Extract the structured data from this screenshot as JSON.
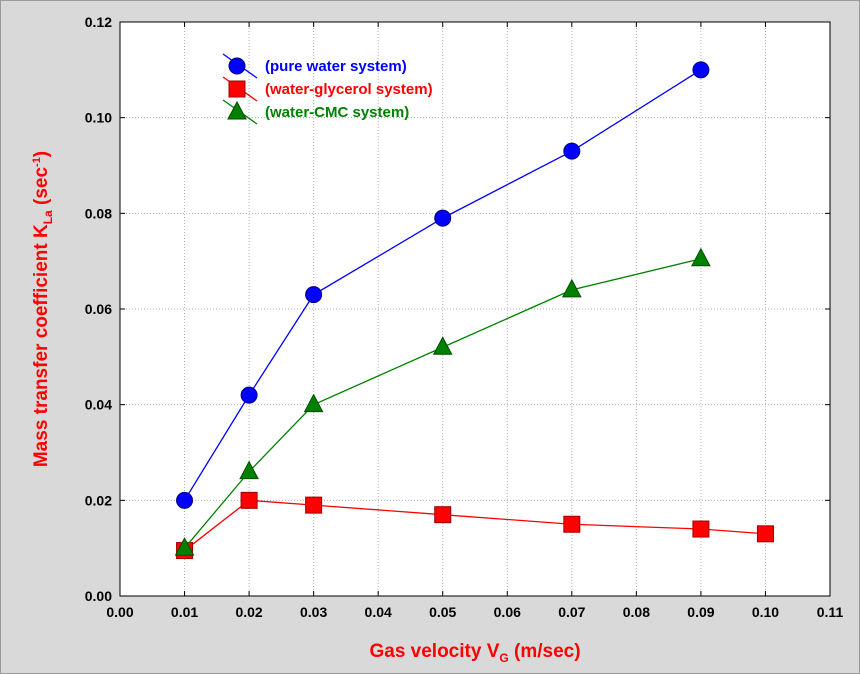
{
  "chart_data": {
    "type": "line",
    "xlabel": "Gas velocity V",
    "xlabel_sub": "G",
    "xlabel_suffix": " (m/sec)",
    "ylabel": "Mass transfer coefficient K",
    "ylabel_sub": "La",
    "ylabel_unit_pre": " (sec",
    "ylabel_sup": "-1",
    "ylabel_unit_post": ")",
    "xlim": [
      0.0,
      0.11
    ],
    "ylim": [
      0.0,
      0.12
    ],
    "x_ticks": [
      "0.00",
      "0.01",
      "0.02",
      "0.03",
      "0.04",
      "0.05",
      "0.06",
      "0.07",
      "0.08",
      "0.09",
      "0.10",
      "0.11"
    ],
    "y_ticks": [
      "0.00",
      "0.02",
      "0.04",
      "0.06",
      "0.08",
      "0.10",
      "0.12"
    ],
    "grid": true,
    "legend_position": "top-left",
    "series": [
      {
        "name": "(pure water system)",
        "color": "#0000ff",
        "marker": "circle",
        "x": [
          0.01,
          0.02,
          0.03,
          0.05,
          0.07,
          0.09
        ],
        "y": [
          0.02,
          0.042,
          0.063,
          0.079,
          0.093,
          0.11
        ]
      },
      {
        "name": "(water-glycerol system)",
        "color": "#ff0000",
        "marker": "square",
        "x": [
          0.01,
          0.02,
          0.03,
          0.05,
          0.07,
          0.09,
          0.1
        ],
        "y": [
          0.0095,
          0.02,
          0.019,
          0.017,
          0.015,
          0.014,
          0.013
        ]
      },
      {
        "name": "(water-CMC system)",
        "color": "#008000",
        "marker": "triangle",
        "x": [
          0.01,
          0.02,
          0.03,
          0.05,
          0.07,
          0.09
        ],
        "y": [
          0.01,
          0.026,
          0.04,
          0.052,
          0.064,
          0.0705
        ]
      }
    ]
  }
}
